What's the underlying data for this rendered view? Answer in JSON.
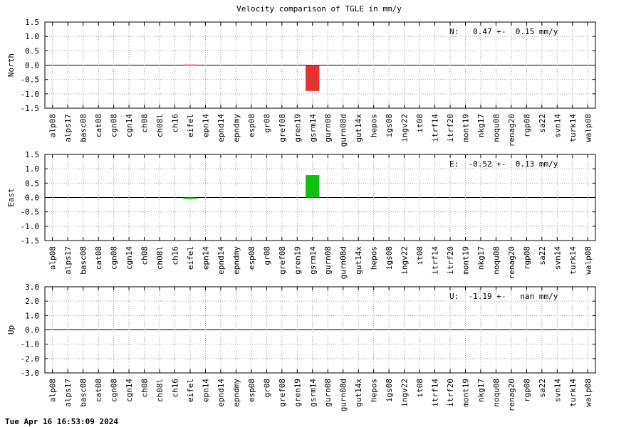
{
  "chart_data": {
    "type": "bar",
    "title": "Velocity comparison of TGLE in mm/y",
    "grid": true,
    "categories": [
      "alp08",
      "alps17",
      "basc08",
      "cat08",
      "cgn08",
      "cgn14",
      "ch08",
      "ch08l",
      "ch16",
      "eifel",
      "epn14",
      "epnd14",
      "epndmy",
      "esp08",
      "gr08",
      "gref08",
      "gren19",
      "gsrm14",
      "gurn08",
      "gurn08d",
      "gut14x",
      "hepos",
      "igs08",
      "ingv22",
      "it08",
      "itrf14",
      "itrf20",
      "mont19",
      "nkg17",
      "noqu08",
      "renag20",
      "rgp08",
      "sa22",
      "svn14",
      "turk14",
      "walp08"
    ],
    "panels": [
      {
        "key": "north",
        "ylabel": "North",
        "ylim": [
          -1.5,
          1.5
        ],
        "yticks": [
          "1.5",
          "1.0",
          "0.5",
          "0.0",
          "-0.5",
          "-1.0",
          "-1.5"
        ],
        "annotation": "N:   0.47 +-  0.15 mm/y",
        "color": "#e83030",
        "values": [
          0,
          0,
          0,
          0,
          0,
          0,
          0,
          0,
          0,
          0.02,
          0,
          0,
          0,
          0,
          0,
          0,
          0,
          -0.9,
          0,
          0,
          0,
          0,
          0,
          0,
          0,
          0,
          0,
          0,
          0,
          0,
          0,
          0,
          0,
          0,
          0,
          0
        ]
      },
      {
        "key": "east",
        "ylabel": "East",
        "ylim": [
          -1.5,
          1.5
        ],
        "yticks": [
          "1.5",
          "1.0",
          "0.5",
          "0.0",
          "-0.5",
          "-1.0",
          "-1.5"
        ],
        "annotation": "E:  -0.52 +-  0.13 mm/y",
        "color": "#10c010",
        "values": [
          0,
          0,
          0,
          0,
          0,
          0,
          0,
          0,
          0,
          -0.05,
          0,
          0,
          0,
          0,
          0,
          0,
          0,
          0.78,
          0,
          0,
          0,
          0,
          0,
          0,
          0,
          0,
          0,
          0,
          0,
          0,
          0,
          0,
          0,
          0,
          0,
          0
        ]
      },
      {
        "key": "up",
        "ylabel": "Up",
        "ylim": [
          -3.0,
          3.0
        ],
        "yticks": [
          "3.0",
          "2.0",
          "1.0",
          "0.0",
          "-1.0",
          "-2.0",
          "-3.0"
        ],
        "annotation": "U:  -1.19 +-   nan mm/y",
        "color": "#2040e0",
        "values": [
          0,
          0,
          0,
          0,
          0,
          0,
          0,
          0,
          0,
          0,
          0,
          0,
          0,
          0,
          0,
          0,
          0,
          0,
          0,
          0,
          0,
          0,
          0,
          0,
          0,
          0,
          0,
          0,
          0,
          0,
          0,
          0,
          0,
          0,
          0,
          0
        ]
      }
    ]
  },
  "footer": {
    "timestamp": "Tue Apr 16 16:53:09 2024"
  }
}
